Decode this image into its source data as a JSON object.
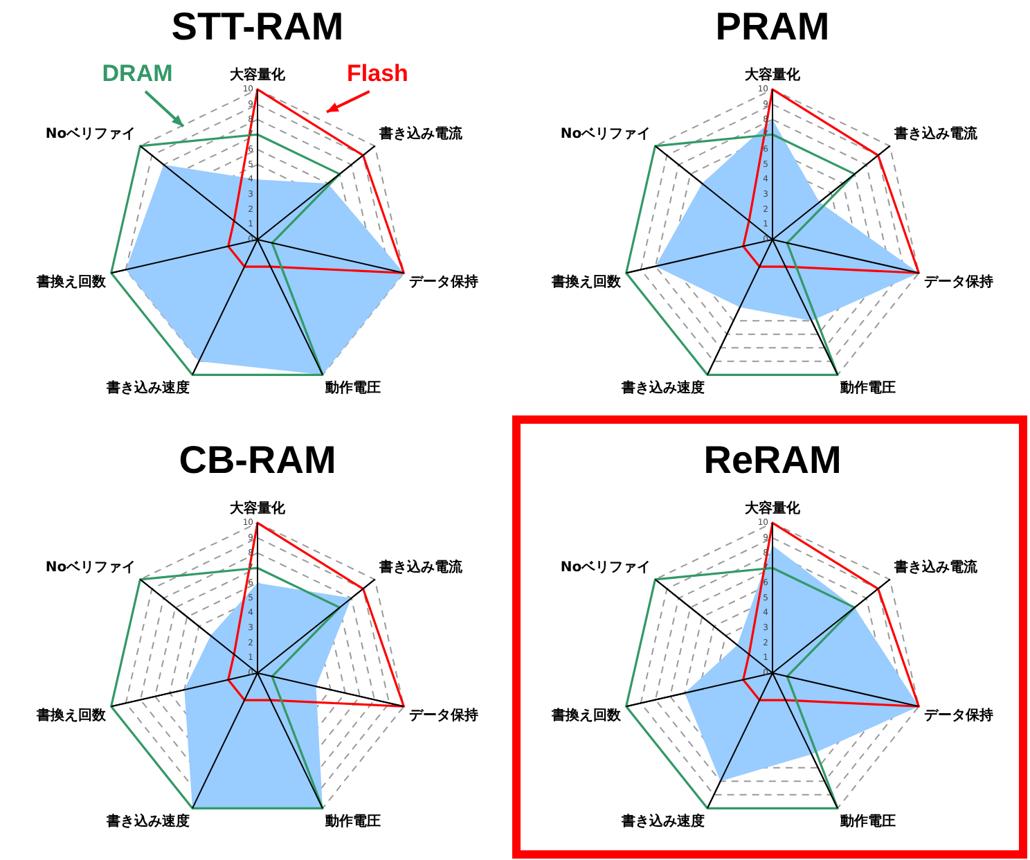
{
  "chart_data": [
    {
      "type": "radar",
      "title": "STT-RAM",
      "categories": [
        "大容量化",
        "書き込み電流",
        "データ保持",
        "動作電圧",
        "書き込み速度",
        "書換え回数",
        "Noベリファイ"
      ],
      "ylim": [
        0,
        10
      ],
      "yticks": [
        0,
        1,
        2,
        3,
        4,
        5,
        6,
        7,
        8,
        9,
        10
      ],
      "grid": true,
      "legend": false,
      "marker": "none",
      "series": [
        {
          "color": "#99ccff",
          "values": [
            4,
            6,
            10,
            10,
            9,
            9,
            8
          ]
        },
        {
          "name": "Flash",
          "color": "#ff0000",
          "values": [
            10,
            9,
            10,
            2,
            2,
            2,
            2
          ]
        },
        {
          "name": "DRAM",
          "color": "#339966",
          "values": [
            7,
            7,
            1,
            10,
            10,
            10,
            10
          ]
        }
      ]
    },
    {
      "type": "radar",
      "title": "PRAM",
      "categories": [
        "大容量化",
        "書き込み電流",
        "データ保持",
        "動作電圧",
        "書き込み速度",
        "書換え回数",
        "Noベリファイ"
      ],
      "ylim": [
        0,
        10
      ],
      "yticks": [
        0,
        1,
        2,
        3,
        4,
        5,
        6,
        7,
        8,
        9,
        10
      ],
      "grid": true,
      "legend": false,
      "marker": "none",
      "series": [
        {
          "color": "#99ccff",
          "values": [
            8,
            4,
            10,
            6,
            5,
            8,
            6
          ]
        },
        {
          "color": "#ff0000",
          "values": [
            10,
            9,
            10,
            2,
            2,
            2,
            2
          ]
        },
        {
          "color": "#339966",
          "values": [
            7,
            7,
            1,
            10,
            10,
            10,
            10
          ]
        }
      ]
    },
    {
      "type": "radar",
      "title": "CB-RAM",
      "categories": [
        "大容量化",
        "書き込み電流",
        "データ保持",
        "動作電圧",
        "書き込み速度",
        "書換え回数",
        "Noベリファイ"
      ],
      "ylim": [
        0,
        10
      ],
      "yticks": [
        0,
        1,
        2,
        3,
        4,
        5,
        6,
        7,
        8,
        9,
        10
      ],
      "grid": true,
      "legend": false,
      "marker": "none",
      "series": [
        {
          "color": "#99ccff",
          "values": [
            6,
            8,
            4,
            10,
            10,
            5,
            4
          ]
        },
        {
          "color": "#ff0000",
          "values": [
            10,
            9,
            10,
            2,
            2,
            2,
            2
          ]
        },
        {
          "color": "#339966",
          "values": [
            7,
            7,
            1,
            10,
            10,
            10,
            10
          ]
        }
      ]
    },
    {
      "type": "radar",
      "title": "ReRAM",
      "categories": [
        "大容量化",
        "書き込み電流",
        "データ保持",
        "動作電圧",
        "書き込み速度",
        "書換え回数",
        "Noベリファイ"
      ],
      "ylim": [
        0,
        10
      ],
      "yticks": [
        0,
        1,
        2,
        3,
        4,
        5,
        6,
        7,
        8,
        9,
        10
      ],
      "grid": true,
      "legend": false,
      "marker": "none",
      "series": [
        {
          "color": "#99ccff",
          "values": [
            8.5,
            7,
            10,
            6,
            8,
            6,
            3
          ]
        },
        {
          "color": "#ff0000",
          "values": [
            10,
            9,
            10,
            2,
            2,
            2,
            2
          ]
        },
        {
          "color": "#339966",
          "values": [
            7,
            7,
            1,
            10,
            10,
            10,
            10
          ]
        }
      ]
    }
  ]
}
